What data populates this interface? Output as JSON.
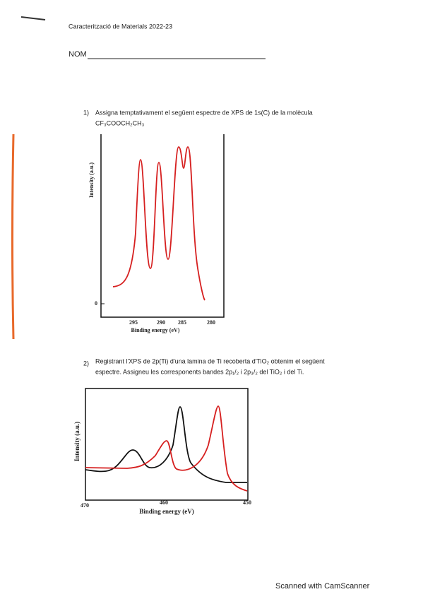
{
  "header": {
    "title": "Caracterització de Materials 2022-23",
    "name_label": "NOM"
  },
  "questions": [
    {
      "number": "1)",
      "lines": [
        "Assigna temptativament el següent espectre de XPS de 1s(C) de la molècula",
        "CF₃COOCH₂CH₃"
      ],
      "figure": {
        "y_label": "Intensity (a.u.)",
        "x_label": "Binding energy (eV)",
        "y_ticks": [
          "0"
        ],
        "x_ticks": [
          "295",
          "290",
          "285",
          "280"
        ]
      }
    },
    {
      "number": "2)",
      "lines": [
        "Registrant l'XPS de 2p(Ti)  d'una lamina de Ti recoberta d'TiO₂ obtenim el següent",
        "espectre. Assigneu les corresponents bandes 2p₁/₂ i 2p₃/₂ del TiO₂ i del Ti."
      ],
      "figure": {
        "y_label": "Intensity (a.u.)",
        "x_label": "Binding energy (eV)",
        "x_ticks": [
          "470",
          "460",
          "450"
        ]
      }
    }
  ],
  "footer": "Scanned with CamScanner"
}
